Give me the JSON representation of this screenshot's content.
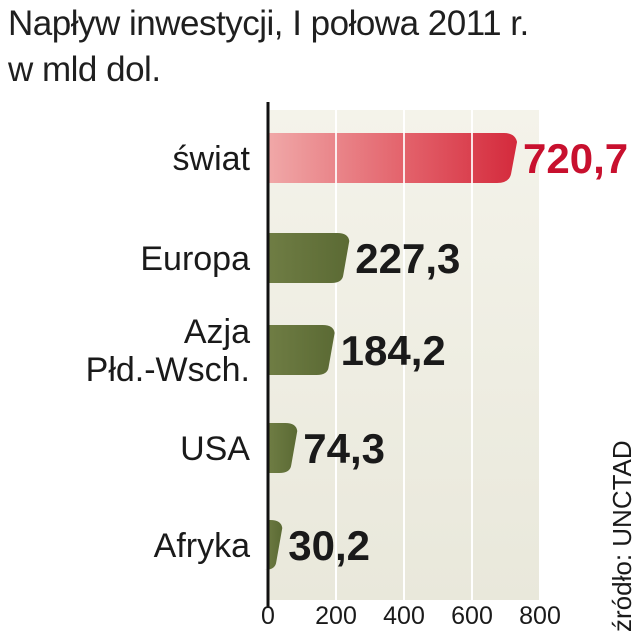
{
  "title_line1": "Napływ inwestycji, I połowa 2011 r.",
  "title_line2": "w mld dol.",
  "source": "źródło: UNCTAD",
  "colors": {
    "highlight_bar": "#d42a3c",
    "highlight_text": "#c8102e",
    "bar": "#5b6a34",
    "value_text": "#1a1a1a",
    "panel": "#e9e8db",
    "panel_highlight": "#f4f3ea"
  },
  "chart_data": {
    "type": "bar",
    "orientation": "horizontal",
    "categories": [
      "świat",
      "Europa",
      "Azja Płd.-Wsch.",
      "USA",
      "Afryka"
    ],
    "category_lines": [
      [
        "świat"
      ],
      [
        "Europa"
      ],
      [
        "Azja",
        "Płd.-Wsch."
      ],
      [
        "USA"
      ],
      [
        "Afryka"
      ]
    ],
    "values": [
      720.7,
      227.3,
      184.2,
      74.3,
      30.2
    ],
    "value_labels": [
      "720,7",
      "227,3",
      "184,2",
      "74,3",
      "30,2"
    ],
    "highlight_index": 0,
    "xlim": [
      0,
      800
    ],
    "xticks": [
      0,
      200,
      400,
      600,
      800
    ],
    "title": "Napływ inwestycji, I połowa 2011 r.",
    "unit": "w mld dol.",
    "grid": true
  }
}
